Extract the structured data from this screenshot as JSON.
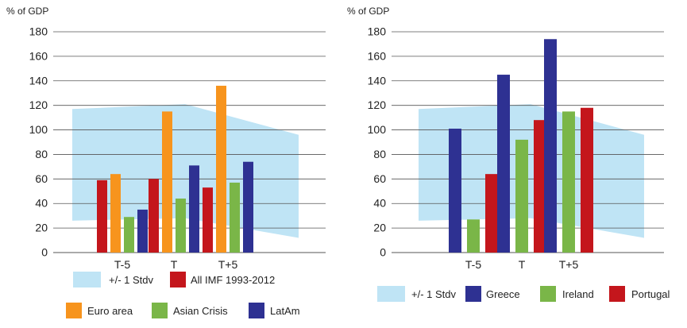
{
  "chart_data": [
    {
      "type": "bar",
      "ylabel": "% of GDP",
      "ylim": [
        0,
        180
      ],
      "yticks": [
        0,
        20,
        40,
        60,
        80,
        100,
        120,
        140,
        160,
        180
      ],
      "categories": [
        "T-5",
        "T",
        "T+5"
      ],
      "band": {
        "name": "+/- 1 Stdv",
        "color": "#bfe4f5",
        "upper": [
          117,
          121,
          96
        ],
        "lower": [
          26,
          28,
          12
        ]
      },
      "series": [
        {
          "name": "All IMF 1993-2012",
          "color": "#c4161c",
          "values": [
            59,
            60,
            53
          ]
        },
        {
          "name": "Euro area",
          "color": "#f7941d",
          "values": [
            64,
            115,
            136
          ]
        },
        {
          "name": "Asian Crisis",
          "color": "#7ab648",
          "values": [
            29,
            44,
            57
          ]
        },
        {
          "name": "LatAm",
          "color": "#2e3192",
          "values": [
            35,
            71,
            74
          ]
        }
      ],
      "legend_rows": [
        [
          "+/- 1 Stdv",
          "All IMF 1993-2012"
        ],
        [
          "Euro area",
          "Asian Crisis",
          "LatAm"
        ]
      ]
    },
    {
      "type": "bar",
      "ylabel": "% of GDP",
      "ylim": [
        0,
        180
      ],
      "yticks": [
        0,
        20,
        40,
        60,
        80,
        100,
        120,
        140,
        160,
        180
      ],
      "categories": [
        "T-5",
        "T",
        "T+5"
      ],
      "band": {
        "name": "+/- 1 Stdv",
        "color": "#bfe4f5",
        "upper": [
          117,
          121,
          96
        ],
        "lower": [
          26,
          28,
          12
        ]
      },
      "series": [
        {
          "name": "Greece",
          "color": "#2e3192",
          "values": [
            101,
            145,
            174
          ]
        },
        {
          "name": "Ireland",
          "color": "#7ab648",
          "values": [
            27,
            92,
            115
          ]
        },
        {
          "name": "Portugal",
          "color": "#c4161c",
          "values": [
            64,
            108,
            118
          ]
        }
      ],
      "legend_rows": [
        [
          "+/- 1 Stdv",
          "Greece",
          "Ireland",
          "Portugal"
        ]
      ]
    }
  ]
}
